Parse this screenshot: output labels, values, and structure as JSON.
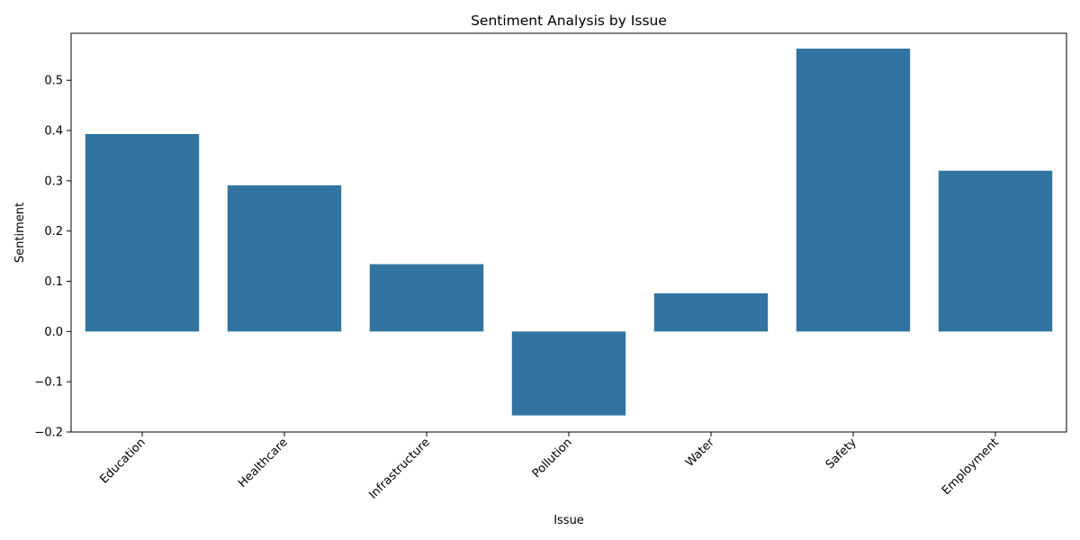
{
  "chart_data": {
    "type": "bar",
    "title": "Sentiment Analysis by Issue",
    "xlabel": "Issue",
    "ylabel": "Sentiment",
    "categories": [
      "Education",
      "Healthcare",
      "Infrastructure",
      "Pollution",
      "Water",
      "Safety",
      "Employment"
    ],
    "values": [
      0.393,
      0.291,
      0.134,
      -0.167,
      0.076,
      0.563,
      0.32
    ],
    "ylim": [
      -0.2,
      0.6
    ],
    "yticks": [
      -0.2,
      -0.1,
      0.0,
      0.1,
      0.2,
      0.3,
      0.4,
      0.5
    ],
    "ytick_labels": [
      "−0.2",
      "−0.1",
      "0.0",
      "0.1",
      "0.2",
      "0.3",
      "0.4",
      "0.5"
    ],
    "bar_color": "#3274a1",
    "grid": false,
    "legend": "none",
    "xtick_rotation": 45
  }
}
